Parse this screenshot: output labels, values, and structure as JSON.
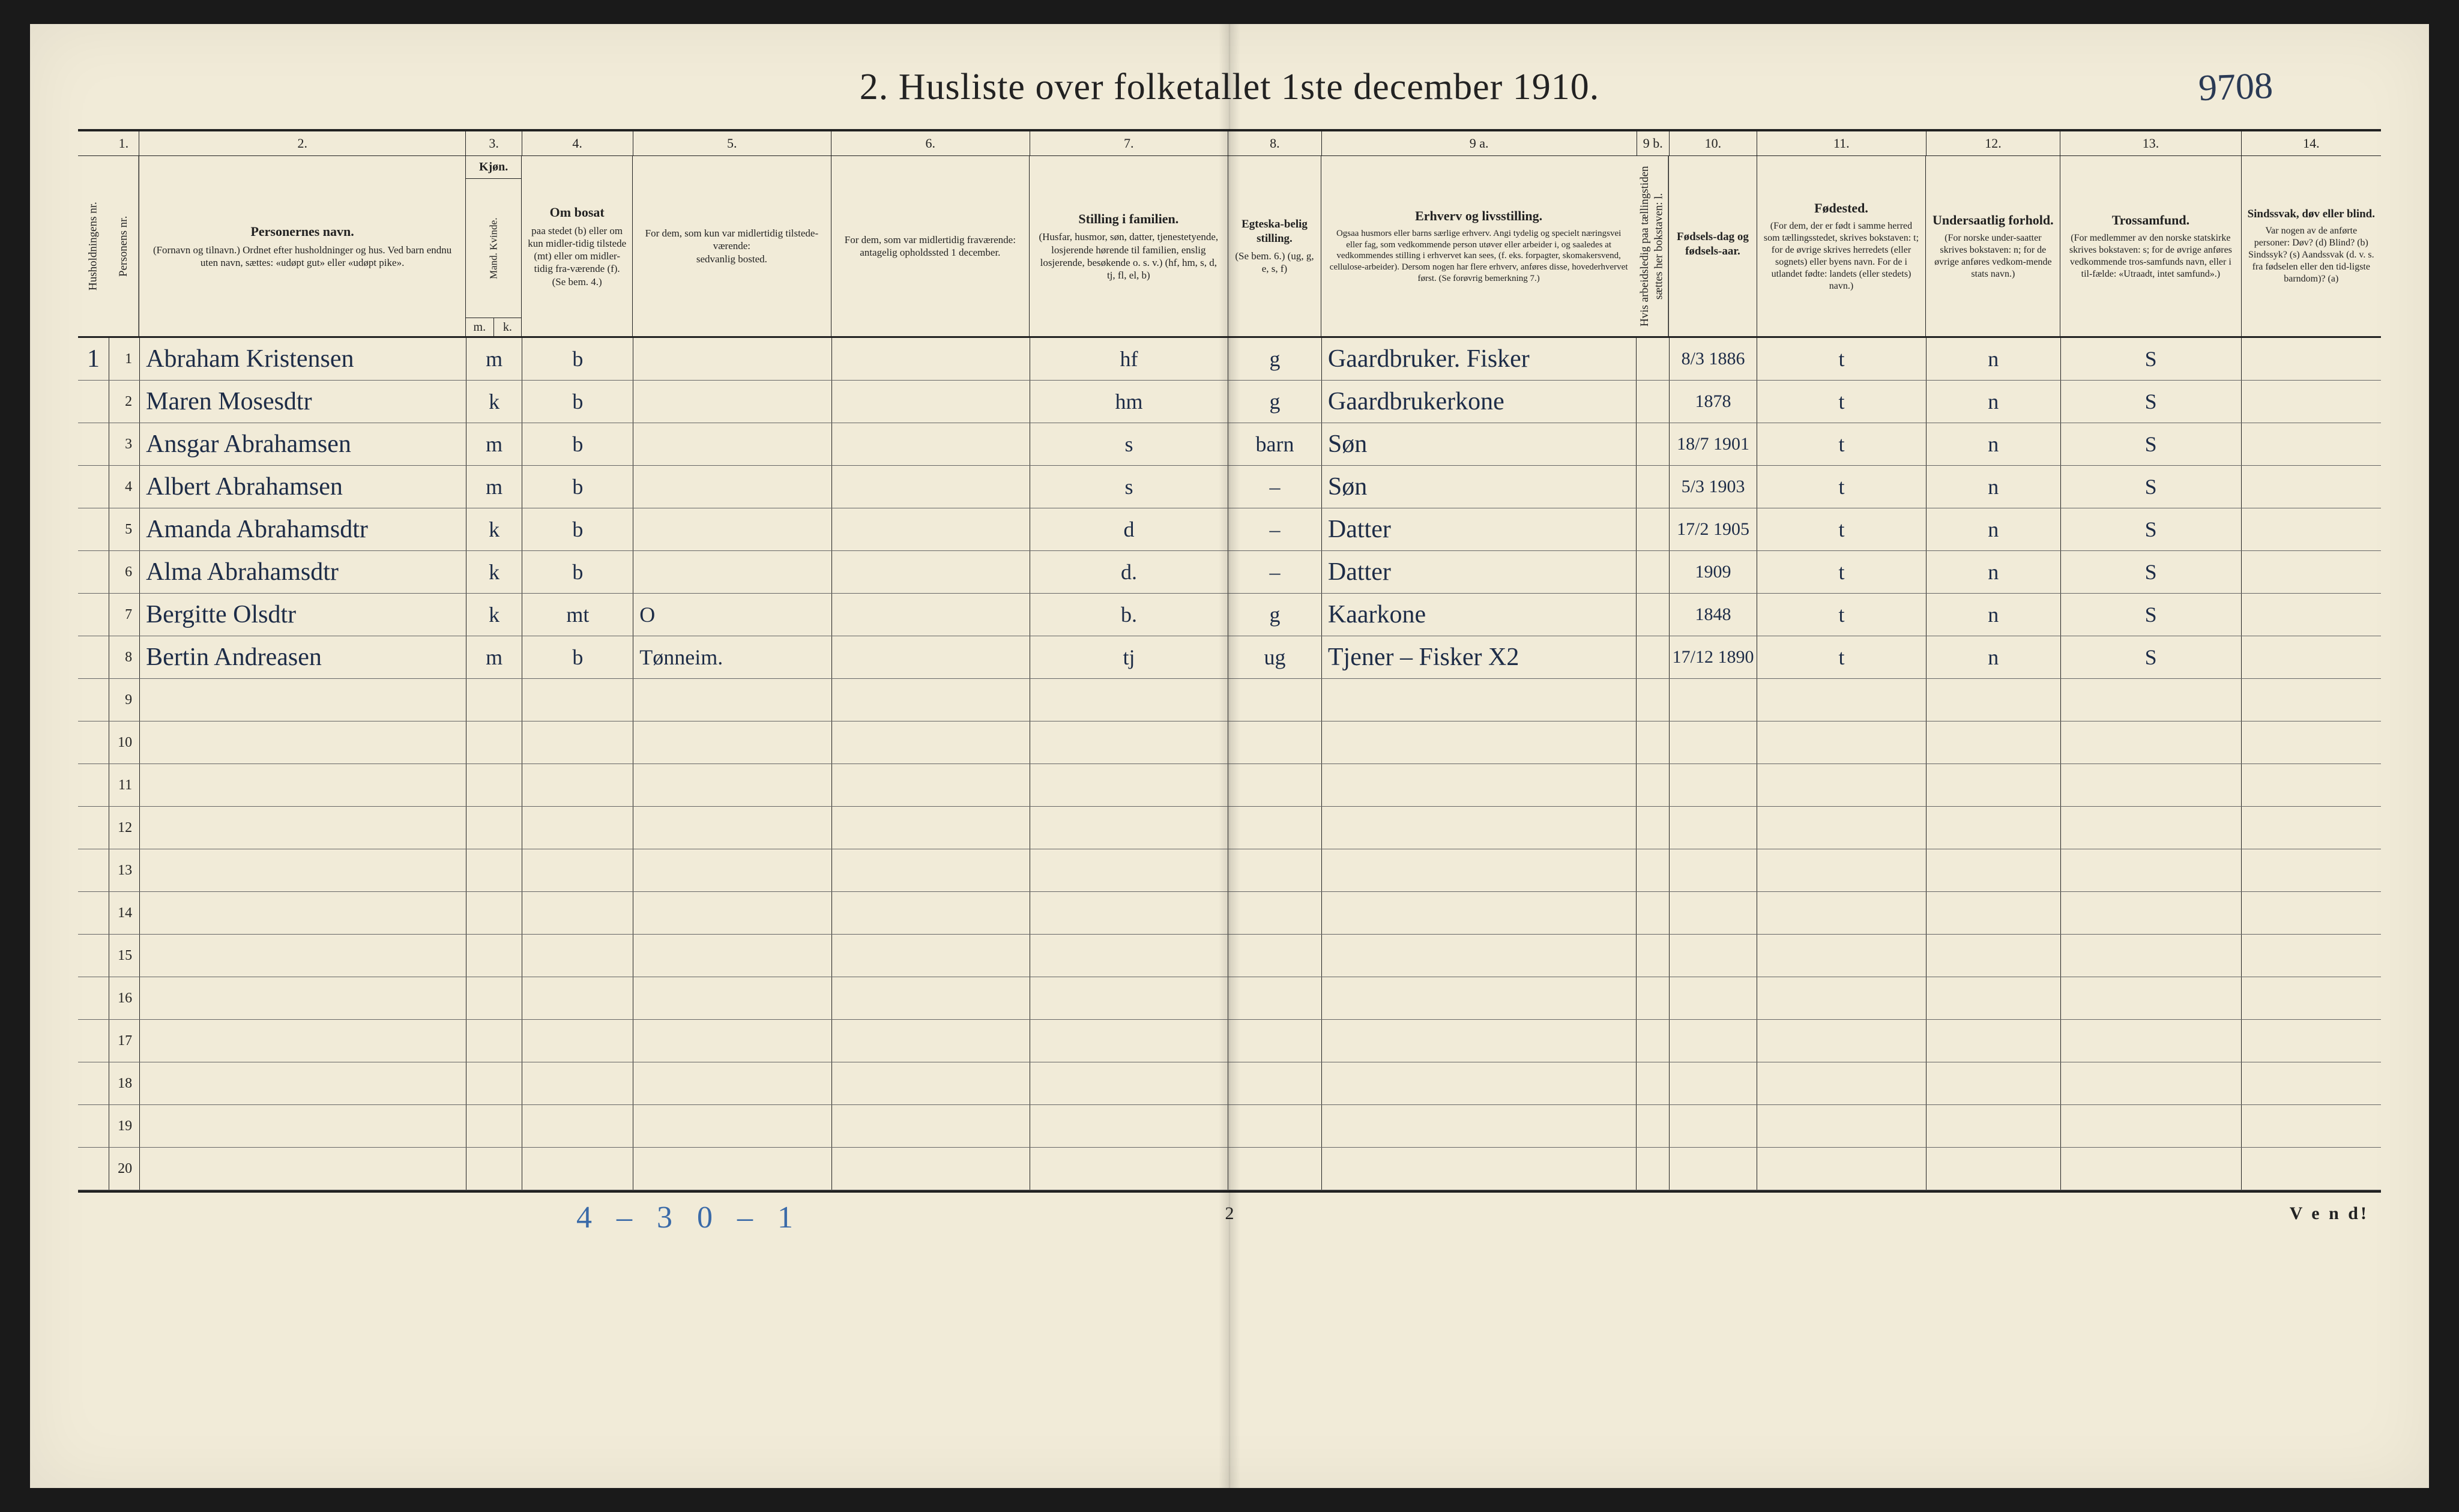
{
  "page_id_handwritten": "9708",
  "title": "2.  Husliste over folketallet 1ste december 1910.",
  "column_numbers": [
    "1.",
    "2.",
    "3.",
    "4.",
    "5.",
    "6.",
    "7.",
    "8.",
    "9 a.",
    "9 b.",
    "10.",
    "11.",
    "12.",
    "13.",
    "14."
  ],
  "headers": {
    "c1a": "Husholdningens nr.",
    "c1b": "Personens nr.",
    "c2_title": "Personernes navn.",
    "c2_body": "(Fornavn og tilnavn.)\nOrdnet efter husholdninger og hus.\nVed barn endnu uten navn, sættes: «udøpt gut»\neller «udøpt pike».",
    "c3_title": "Kjøn.",
    "c3_m": "m.",
    "c3_k": "k.",
    "c3_top": "Mand.  Kvinde.",
    "c4_title": "Om bosat",
    "c4_body": "paa stedet (b) eller om kun midler-tidig tilstede (mt) eller om midler-tidig fra-værende (f). (Se bem. 4.)",
    "c5_title": "For dem, som kun var midlertidig tilstede-værende:",
    "c5_body": "sedvanlig bosted.",
    "c6_title": "For dem, som var midlertidig fraværende:",
    "c6_body": "antagelig opholdssted 1 december.",
    "c7_title": "Stilling i familien.",
    "c7_body": "(Husfar, husmor, søn, datter, tjenestetyende, losjerende hørende til familien, enslig losjerende, besøkende o. s. v.)\n(hf, hm, s, d, tj, fl, el, b)",
    "c8_title": "Egteska-belig stilling.",
    "c8_body": "(Se bem. 6.) (ug, g, e, s, f)",
    "c9a_title": "Erhverv og livsstilling.",
    "c9a_body": "Ogsaa husmors eller barns særlige erhverv. Angi tydelig og specielt næringsvei eller fag, som vedkommende person utøver eller arbeider i, og saaledes at vedkommendes stilling i erhvervet kan sees, (f. eks. forpagter, skomakersvend, cellulose-arbeider). Dersom nogen har flere erhverv, anføres disse, hovederhvervet først. (Se forøvrig bemerkning 7.)",
    "c9b": "Hvis arbeidsledig paa tællingstiden sættes her bokstaven: l.",
    "c10_title": "Fødsels-dag og fødsels-aar.",
    "c11_title": "Fødested.",
    "c11_body": "(For dem, der er født i samme herred som tællingsstedet, skrives bokstaven: t; for de øvrige skrives herredets (eller sognets) eller byens navn. For de i utlandet fødte: landets (eller stedets) navn.)",
    "c12_title": "Undersaatlig forhold.",
    "c12_body": "(For norske under-saatter skrives bokstaven: n; for de øvrige anføres vedkom-mende stats navn.)",
    "c13_title": "Trossamfund.",
    "c13_body": "(For medlemmer av den norske statskirke skrives bokstaven: s; for de øvrige anføres vedkommende tros-samfunds navn, eller i til-fælde: «Utraadt, intet samfund».)",
    "c14_title": "Sindssvak, døv eller blind.",
    "c14_body": "Var nogen av de anførte personer: Døv? (d)  Blind? (b)  Sindssyk? (s)  Aandssvak (d. v. s. fra fødselen eller den tid-ligste barndom)? (a)"
  },
  "rows": [
    {
      "hh": "1",
      "n": "1",
      "name": "Abraham Kristensen",
      "sex": "m",
      "res": "b",
      "c5": "",
      "c6": "",
      "fam": "hf",
      "mar": "g",
      "occ": "Gaardbruker. Fisker",
      "born": "8/3 1886",
      "place": "t",
      "nat": "n",
      "rel": "S",
      "c14": ""
    },
    {
      "hh": "",
      "n": "2",
      "name": "Maren Mosesdtr",
      "sex": "k",
      "res": "b",
      "c5": "",
      "c6": "",
      "fam": "hm",
      "mar": "g",
      "occ": "Gaardbrukerkone",
      "born": "1878",
      "place": "t",
      "nat": "n",
      "rel": "S",
      "c14": ""
    },
    {
      "hh": "",
      "n": "3",
      "name": "Ansgar Abrahamsen",
      "sex": "m",
      "res": "b",
      "c5": "",
      "c6": "",
      "fam": "s",
      "mar": "barn",
      "occ": "Søn",
      "born": "18/7 1901",
      "place": "t",
      "nat": "n",
      "rel": "S",
      "c14": ""
    },
    {
      "hh": "",
      "n": "4",
      "name": "Albert Abrahamsen",
      "sex": "m",
      "res": "b",
      "c5": "",
      "c6": "",
      "fam": "s",
      "mar": "–",
      "occ": "Søn",
      "born": "5/3 1903",
      "place": "t",
      "nat": "n",
      "rel": "S",
      "c14": ""
    },
    {
      "hh": "",
      "n": "5",
      "name": "Amanda Abrahamsdtr",
      "sex": "k",
      "res": "b",
      "c5": "",
      "c6": "",
      "fam": "d",
      "mar": "–",
      "occ": "Datter",
      "born": "17/2 1905",
      "place": "t",
      "nat": "n",
      "rel": "S",
      "c14": ""
    },
    {
      "hh": "",
      "n": "6",
      "name": "Alma Abrahamsdtr",
      "sex": "k",
      "res": "b",
      "c5": "",
      "c6": "",
      "fam": "d.",
      "mar": "–",
      "occ": "Datter",
      "born": "1909",
      "place": "t",
      "nat": "n",
      "rel": "S",
      "c14": ""
    },
    {
      "hh": "",
      "n": "7",
      "name": "Bergitte Olsdtr",
      "sex": "k",
      "res": "mt",
      "c5": "O",
      "c6": "",
      "fam": "b.",
      "mar": "g",
      "occ": "Kaarkone",
      "born": "1848",
      "place": "t",
      "nat": "n",
      "rel": "S",
      "c14": ""
    },
    {
      "hh": "",
      "n": "8",
      "name": "Bertin Andreasen",
      "sex": "m",
      "res": "b",
      "c5": "Tønneim.",
      "c6": "",
      "fam": "tj",
      "mar": "ug",
      "occ": "Tjener – Fisker  X2",
      "born": "17/12 1890",
      "place": "t",
      "nat": "n",
      "rel": "S",
      "c14": ""
    }
  ],
  "empty_row_numbers": [
    "9",
    "10",
    "11",
    "12",
    "13",
    "14",
    "15",
    "16",
    "17",
    "18",
    "19",
    "20"
  ],
  "footer": {
    "handwritten": "4 – 3   0 – 1",
    "page_number": "2",
    "vend": "V e n d!"
  },
  "colors": {
    "paper": "#f1ebd8",
    "ink": "#222222",
    "handwriting": "#1d2c47",
    "handwriting_blue": "#3a6aa8",
    "outer": "#1a1a1a"
  }
}
